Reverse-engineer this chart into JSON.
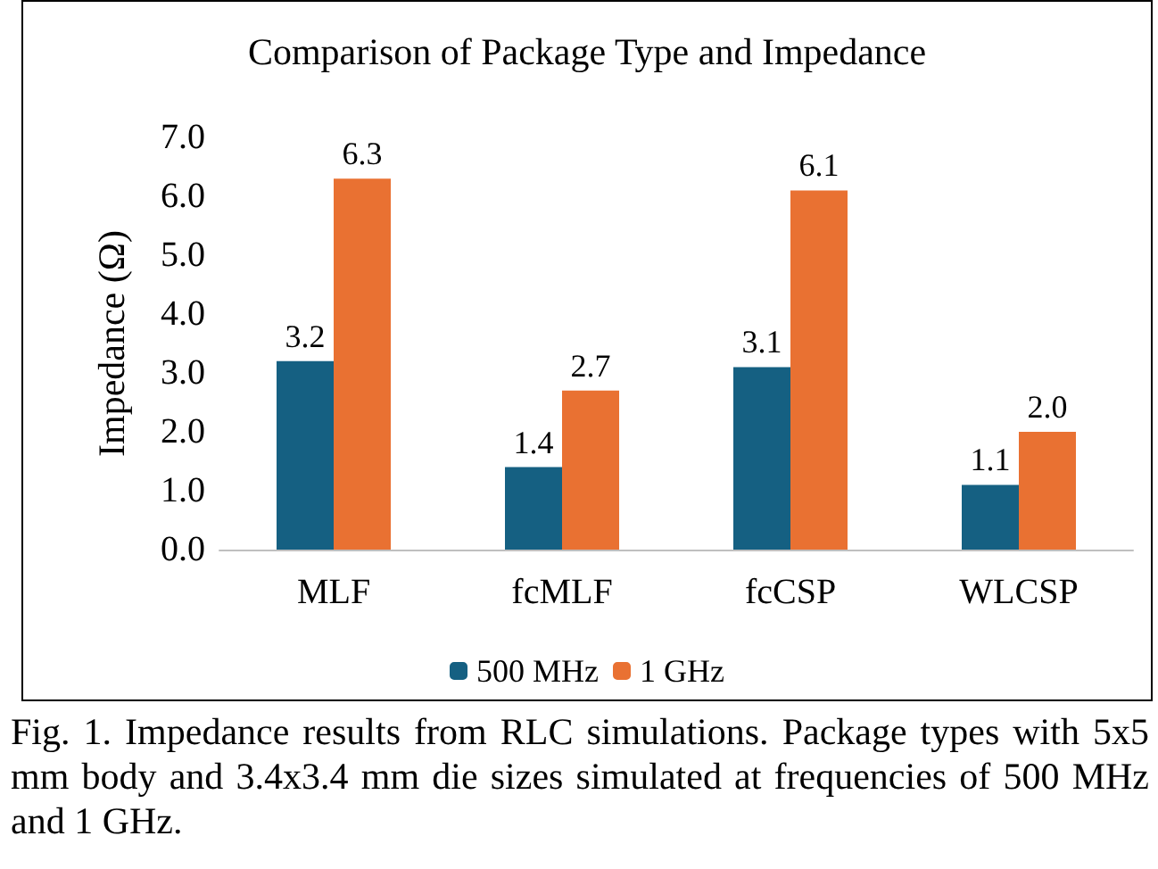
{
  "chart_data": {
    "type": "bar",
    "title": "Comparison of Package Type and Impedance",
    "ylabel": "Impedance (Ω)",
    "categories": [
      "MLF",
      "fcMLF",
      "fcCSP",
      "WLCSP"
    ],
    "series": [
      {
        "name": "500 MHz",
        "color": "#156082",
        "values": [
          3.2,
          1.4,
          3.1,
          1.1
        ],
        "value_labels": [
          "3.2",
          "1.4",
          "3.1",
          "1.1"
        ]
      },
      {
        "name": "1 GHz",
        "color": "#e97132",
        "values": [
          6.3,
          2.7,
          6.1,
          2.0
        ],
        "value_labels": [
          "6.3",
          "2.7",
          "6.1",
          "2.0"
        ]
      }
    ],
    "ylim": [
      0,
      7
    ],
    "yticks": [
      {
        "value": 0,
        "label": "0.0"
      },
      {
        "value": 1,
        "label": "1.0"
      },
      {
        "value": 2,
        "label": "2.0"
      },
      {
        "value": 3,
        "label": "3.0"
      },
      {
        "value": 4,
        "label": "4.0"
      },
      {
        "value": 5,
        "label": "5.0"
      },
      {
        "value": 6,
        "label": "6.0"
      },
      {
        "value": 7,
        "label": "7.0"
      }
    ],
    "grid": false,
    "legend": "bottom",
    "annotations": [
      "Fig. 1. Impedance results from RLC simulations. Package types with 5x5 mm body and 3.4x3.4 mm die sizes simulated at frequencies of 500 MHz and 1 GHz."
    ]
  }
}
